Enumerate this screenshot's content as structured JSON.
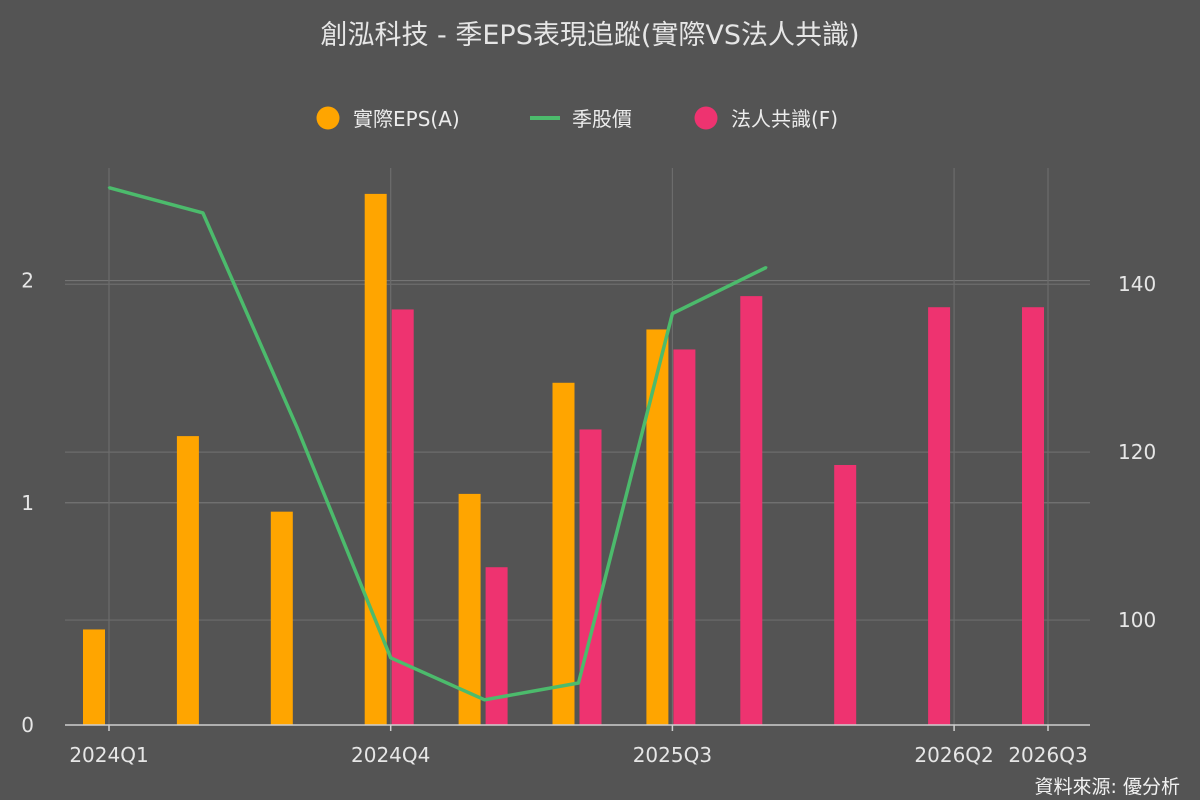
{
  "chart_data": {
    "type": "bar",
    "title": "創泓科技 - 季EPS表現追蹤(實際VS法人共識)",
    "legend": {
      "placement": "top-center",
      "items": [
        {
          "label": "實際EPS(A)",
          "kind": "dot",
          "color": "#ffa500"
        },
        {
          "label": "季股價",
          "kind": "line",
          "color": "#4cbb6c"
        },
        {
          "label": "法人共識(F)",
          "kind": "dot",
          "color": "#ee3370"
        }
      ]
    },
    "categories": [
      "2024Q1",
      "2024Q2",
      "2024Q3",
      "2024Q4",
      "2025Q1",
      "2025Q2",
      "2025Q3",
      "2025Q4",
      "2026Q1",
      "2026Q2",
      "2026Q3"
    ],
    "x_tick_labels": [
      "2024Q1",
      "2024Q4",
      "2025Q3",
      "2026Q2",
      "2026Q3"
    ],
    "series": [
      {
        "name": "實際EPS(A)",
        "type": "bar",
        "axis": "left",
        "color": "#ffa500",
        "values": [
          0.43,
          1.3,
          0.96,
          2.39,
          1.04,
          1.54,
          1.78,
          null,
          null,
          null,
          null
        ]
      },
      {
        "name": "法人共識(F)",
        "type": "bar",
        "axis": "left",
        "color": "#ee3370",
        "values": [
          null,
          null,
          null,
          1.87,
          0.71,
          1.33,
          1.69,
          1.93,
          1.17,
          1.88,
          1.88
        ]
      },
      {
        "name": "季股價",
        "type": "line",
        "axis": "right",
        "color": "#4cbb6c",
        "values": [
          151.5,
          148.5,
          123.0,
          95.5,
          90.5,
          92.5,
          136.5,
          142.0,
          null,
          null,
          null
        ]
      }
    ],
    "y_left": {
      "range": [
        0,
        2.52
      ],
      "ticks": [
        0,
        1,
        2
      ],
      "tick_labels": [
        "0",
        "1",
        "2"
      ]
    },
    "y_right": {
      "range": [
        87.5,
        154.2
      ],
      "ticks": [
        100,
        120,
        140
      ],
      "tick_labels": [
        "100",
        "120",
        "140"
      ]
    },
    "grid": true
  },
  "source_text": "資料來源: 優分析"
}
